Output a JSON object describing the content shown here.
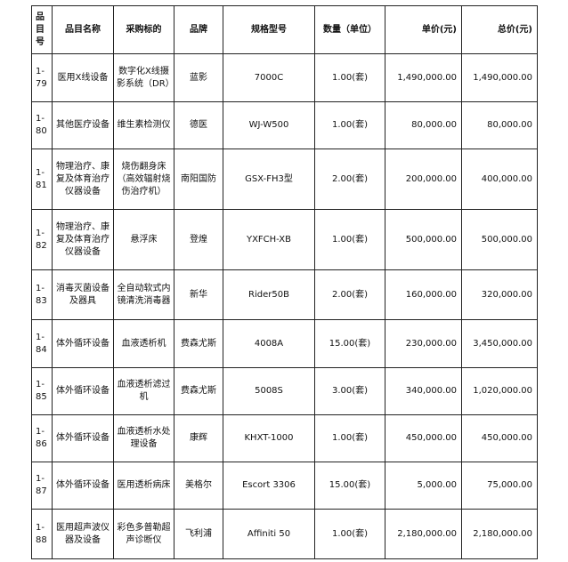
{
  "headers": [
    "品目号",
    "品目名称",
    "采购标的",
    "品牌",
    "规格型号",
    "数量（单位）",
    "单价(元)",
    "总价(元)"
  ],
  "rows": [
    {
      "id": "1-79",
      "category": "医用X线设备",
      "item": "数字化X线摄影系统（DR）",
      "brand": "蓝影",
      "model": "7000C",
      "qty": "1.00(套)",
      "unit_price": "1,490,000.00",
      "total": "1,490,000.00"
    },
    {
      "id": "1-80",
      "category": "其他医疗设备",
      "item": "维生素检测仪",
      "brand": "德医",
      "model": "WJ-W500",
      "qty": "1.00(套)",
      "unit_price": "80,000.00",
      "total": "80,000.00"
    },
    {
      "id": "1-81",
      "category": "物理治疗、康复及体育治疗仪器设备",
      "item": "烧伤翻身床（高效辐射烧伤治疗机）",
      "brand": "南阳国防",
      "model": "GSX-FH3型",
      "qty": "2.00(套)",
      "unit_price": "200,000.00",
      "total": "400,000.00"
    },
    {
      "id": "1-82",
      "category": "物理治疗、康复及体育治疗仪器设备",
      "item": "悬浮床",
      "brand": "登煌",
      "model": "YXFCH-XB",
      "qty": "1.00(套)",
      "unit_price": "500,000.00",
      "total": "500,000.00"
    },
    {
      "id": "1-83",
      "category": "消毒灭菌设备及器具",
      "item": "全自动软式内镜清洗消毒器",
      "brand": "新华",
      "model": "Rider50B",
      "qty": "2.00(套)",
      "unit_price": "160,000.00",
      "total": "320,000.00"
    },
    {
      "id": "1-84",
      "category": "体外循环设备",
      "item": "血液透析机",
      "brand": "费森尤斯",
      "model": "4008A",
      "qty": "15.00(套)",
      "unit_price": "230,000.00",
      "total": "3,450,000.00"
    },
    {
      "id": "1-85",
      "category": "体外循环设备",
      "item": "血液透析滤过机",
      "brand": "费森尤斯",
      "model": "5008S",
      "qty": "3.00(套)",
      "unit_price": "340,000.00",
      "total": "1,020,000.00"
    },
    {
      "id": "1-86",
      "category": "体外循环设备",
      "item": "血液透析水处理设备",
      "brand": "康辉",
      "model": "KHXT-1000",
      "qty": "1.00(套)",
      "unit_price": "450,000.00",
      "total": "450,000.00"
    },
    {
      "id": "1-87",
      "category": "体外循环设备",
      "item": "医用透析病床",
      "brand": "美格尔",
      "model": "Escort 3306",
      "qty": "15.00(套)",
      "unit_price": "5,000.00",
      "total": "75,000.00"
    },
    {
      "id": "1-88",
      "category": "医用超声波仪器及设备",
      "item": "彩色多普勒超声诊断仪",
      "brand": "飞利浦",
      "model": "Affiniti 50",
      "qty": "1.00(套)",
      "unit_price": "2,180,000.00",
      "total": "2,180,000.00"
    }
  ]
}
